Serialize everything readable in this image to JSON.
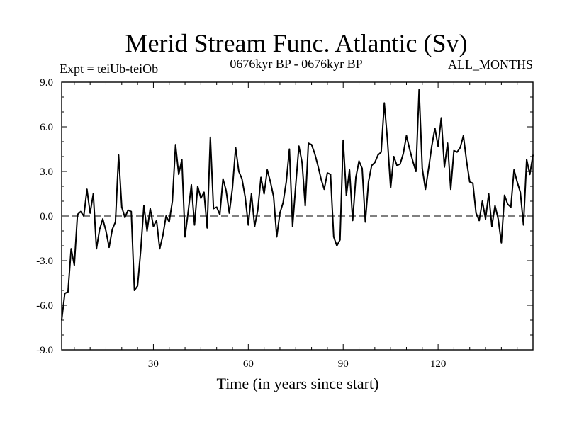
{
  "chart_data": {
    "type": "line",
    "title": "Merid Stream Func. Atlantic (Sv)",
    "subtitle_left": "Expt = teiUb-teiOb",
    "subtitle_center": "0676kyr BP - 0676kyr BP",
    "subtitle_right": "ALL_MONTHS",
    "xlabel": "Time (in years since start)",
    "ylabel": "",
    "xlim": [
      1,
      150
    ],
    "ylim": [
      -9,
      9
    ],
    "x_ticks": [
      30,
      60,
      90,
      120
    ],
    "y_ticks": [
      9,
      6,
      3,
      0,
      -3,
      -6,
      -9
    ],
    "y_tick_labels": [
      "9.0",
      "6.0",
      "3.0",
      "0.0",
      "-3.0",
      "-6.0",
      "-9.0"
    ],
    "zero_line": "dashed",
    "series": [
      {
        "name": "teiUb-teiOb",
        "x": [
          1,
          2,
          3,
          4,
          5,
          6,
          7,
          8,
          9,
          10,
          11,
          12,
          13,
          14,
          15,
          16,
          17,
          18,
          19,
          20,
          21,
          22,
          23,
          24,
          25,
          26,
          27,
          28,
          29,
          30,
          31,
          32,
          33,
          34,
          35,
          36,
          37,
          38,
          39,
          40,
          41,
          42,
          43,
          44,
          45,
          46,
          47,
          48,
          49,
          50,
          51,
          52,
          53,
          54,
          55,
          56,
          57,
          58,
          59,
          60,
          61,
          62,
          63,
          64,
          65,
          66,
          67,
          68,
          69,
          70,
          71,
          72,
          73,
          74,
          75,
          76,
          77,
          78,
          79,
          80,
          81,
          82,
          83,
          84,
          85,
          86,
          87,
          88,
          89,
          90,
          91,
          92,
          93,
          94,
          95,
          96,
          97,
          98,
          99,
          100,
          101,
          102,
          103,
          104,
          105,
          106,
          107,
          108,
          109,
          110,
          111,
          112,
          113,
          114,
          115,
          116,
          117,
          118,
          119,
          120,
          121,
          122,
          123,
          124,
          125,
          126,
          127,
          128,
          129,
          130,
          131,
          132,
          133,
          134,
          135,
          136,
          137,
          138,
          139,
          140,
          141,
          142,
          143,
          144,
          145,
          146,
          147,
          148,
          149,
          150
        ],
        "values": [
          -7.0,
          -5.2,
          -5.1,
          -2.2,
          -3.3,
          0.1,
          0.3,
          0.0,
          1.8,
          0.2,
          1.5,
          -2.2,
          -0.9,
          -0.2,
          -1.0,
          -2.1,
          -0.9,
          -0.4,
          4.1,
          0.6,
          -0.1,
          0.4,
          0.3,
          -5.0,
          -4.7,
          -2.3,
          0.7,
          -1.0,
          0.5,
          -0.7,
          -0.3,
          -2.2,
          -1.3,
          0.0,
          -0.4,
          1.0,
          4.8,
          2.8,
          3.8,
          -1.4,
          0.3,
          2.1,
          -0.6,
          2.0,
          1.2,
          1.6,
          -0.8,
          5.3,
          0.5,
          0.6,
          0.1,
          2.5,
          1.7,
          0.2,
          1.9,
          4.6,
          3.0,
          2.5,
          1.3,
          -0.6,
          1.5,
          -0.7,
          0.4,
          2.6,
          1.5,
          3.1,
          2.3,
          1.3,
          -1.4,
          0.2,
          0.9,
          2.3,
          4.5,
          -0.7,
          2.1,
          4.7,
          3.6,
          0.7,
          4.9,
          4.8,
          4.2,
          3.4,
          2.5,
          1.8,
          2.9,
          2.8,
          -1.4,
          -2.0,
          -1.6,
          5.1,
          1.4,
          3.1,
          -0.3,
          2.6,
          3.7,
          3.2,
          -0.4,
          2.3,
          3.4,
          3.6,
          4.1,
          4.3,
          7.6,
          5.1,
          1.9,
          4.0,
          3.4,
          3.5,
          4.2,
          5.4,
          4.5,
          3.7,
          3.0,
          8.5,
          3.2,
          1.8,
          3.2,
          4.7,
          5.9,
          4.7,
          6.6,
          3.3,
          4.9,
          1.8,
          4.4,
          4.3,
          4.6,
          5.4,
          3.7,
          2.3,
          2.2,
          0.2,
          -0.3,
          1.0,
          -0.2,
          1.5,
          -0.7,
          0.7,
          -0.2,
          -1.8,
          1.4,
          0.8,
          0.6,
          3.1,
          2.3,
          1.6,
          -0.6,
          3.8,
          2.8,
          4.1
        ]
      }
    ]
  }
}
